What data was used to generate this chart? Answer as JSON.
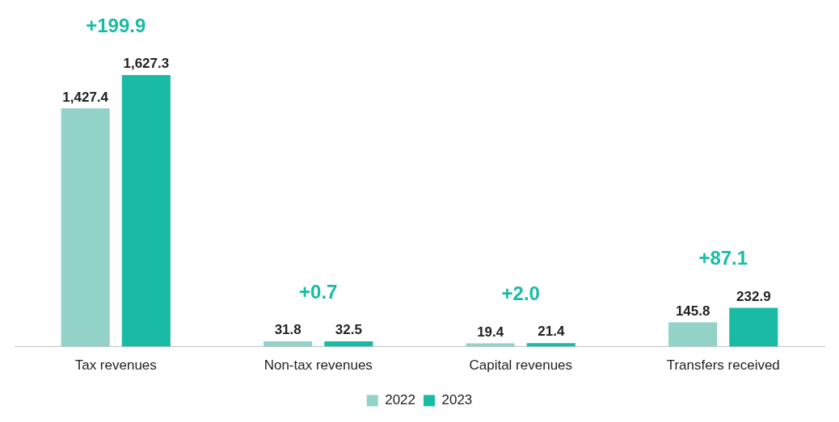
{
  "chart_data": {
    "type": "bar",
    "categories": [
      "Tax revenues",
      "Non-tax revenues",
      "Capital revenues",
      "Transfers received"
    ],
    "series": [
      {
        "name": "2022",
        "color": "#93d2c6",
        "values": [
          1427.4,
          31.8,
          19.4,
          145.8
        ],
        "value_labels": [
          "1,427.4",
          "31.8",
          "19.4",
          "145.8"
        ]
      },
      {
        "name": "2023",
        "color": "#19bba5",
        "values": [
          1627.3,
          32.5,
          21.4,
          232.9
        ],
        "value_labels": [
          "1,627.3",
          "32.5",
          "21.4",
          "232.9"
        ]
      }
    ],
    "legend": "bottom",
    "grid": false,
    "annotations": [
      "+199.9",
      "+0.7",
      "+2.0",
      "+87.1"
    ]
  }
}
